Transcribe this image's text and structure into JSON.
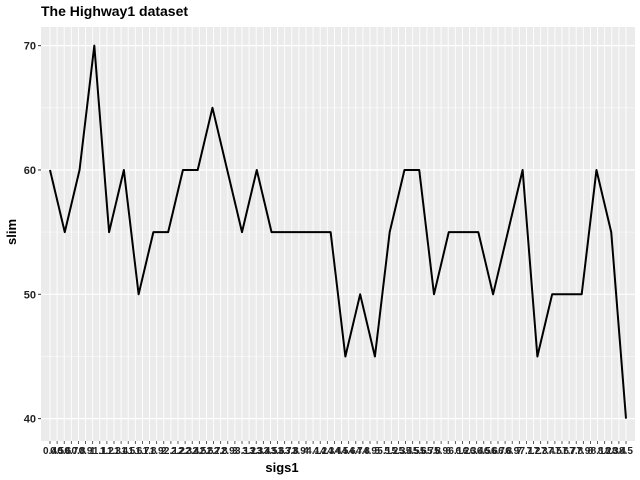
{
  "chart_data": {
    "type": "line",
    "title": "The Highway1 dataset",
    "xlabel": "sigs1",
    "ylabel": "slim",
    "ylim": [
      38.2,
      71.5
    ],
    "yticks": [
      40,
      50,
      60,
      70
    ],
    "grid": true,
    "x_tick_labels": [
      "0.4",
      "0.5",
      "0.6",
      "0.7",
      "0.8",
      "0.9",
      "1",
      "1.1",
      "1.2",
      "1.3",
      "1.4",
      "1.5",
      "1.6",
      "1.7",
      "1.8",
      "1.9",
      "2",
      "2.1",
      "2.2",
      "2.3",
      "2.4",
      "2.5",
      "2.6",
      "2.7",
      "2.8",
      "2.9",
      "3",
      "3.1",
      "3.2",
      "3.3",
      "3.4",
      "3.5",
      "3.6",
      "3.7",
      "3.8",
      "3.9",
      "4",
      "4.1",
      "4.2",
      "4.3",
      "4.4",
      "4.5",
      "4.6",
      "4.7",
      "4.8",
      "4.9",
      "5",
      "5.1",
      "5.2",
      "5.3",
      "5.4",
      "5.5",
      "5.6",
      "5.7",
      "5.8",
      "5.9",
      "6",
      "6.1",
      "6.2",
      "6.3",
      "6.4",
      "6.5",
      "6.6",
      "6.7",
      "6.8",
      "6.9",
      "7",
      "7.1",
      "7.2",
      "7.3",
      "7.4",
      "7.5",
      "7.6",
      "7.7",
      "7.8",
      "7.9",
      "8",
      "8.1",
      "8.2",
      "8.3",
      "8.4",
      "8.5"
    ],
    "series": [
      {
        "name": "",
        "values": [
          60,
          55,
          60,
          70,
          55,
          60,
          50,
          55,
          55,
          60,
          60,
          65,
          60,
          55,
          60,
          55,
          55,
          55,
          55,
          55,
          45,
          50,
          45,
          55,
          60,
          60,
          50,
          55,
          55,
          55,
          50,
          55,
          60,
          45,
          50,
          50,
          50,
          60,
          55,
          40
        ]
      }
    ],
    "colors": {
      "panel": "#ebebeb",
      "grid_major": "#ffffff",
      "line": "#000000"
    }
  }
}
